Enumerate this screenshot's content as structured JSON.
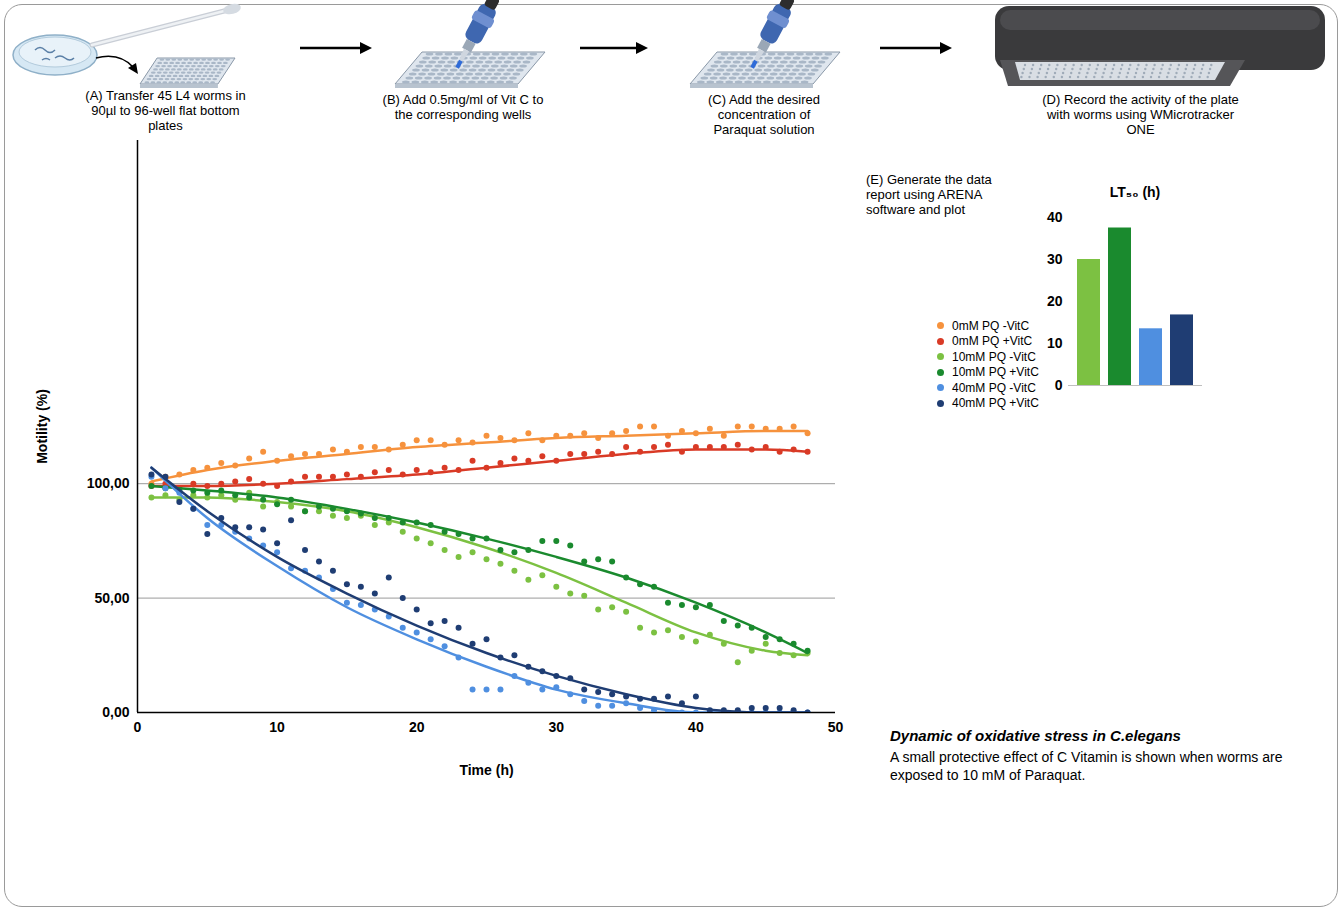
{
  "workflow": {
    "steps": [
      "(A) Transfer 45 L4 worms in 90µl to 96-well flat bottom plates",
      "(B) Add 0.5mg/ml  of Vit C to the corresponding wells",
      "(C) Add the desired concentration of Paraquat solution",
      "(D) Record the activity of the plate with worms using WMicrotracker ONE",
      "(E) Generate the data report using ARENA software and plot"
    ]
  },
  "chart_data": [
    {
      "type": "scatter",
      "marker": "circle",
      "xlabel": "Time (h)",
      "ylabel": "Motility (%)",
      "x": [
        1,
        2,
        3,
        4,
        5,
        6,
        7,
        8,
        9,
        10,
        11,
        12,
        13,
        14,
        15,
        16,
        17,
        18,
        19,
        20,
        21,
        22,
        23,
        24,
        25,
        26,
        27,
        28,
        29,
        30,
        31,
        32,
        33,
        34,
        35,
        36,
        37,
        38,
        39,
        40,
        41,
        42,
        43,
        44,
        45,
        46,
        47,
        48
      ],
      "trend_x": [
        1,
        5,
        10,
        15,
        20,
        25,
        30,
        35,
        40,
        45,
        48
      ],
      "series": [
        {
          "name": "0mM PQ -VitC",
          "color": "#f6923d",
          "values": [
            100,
            103,
            104,
            106,
            107,
            109,
            108,
            111,
            114,
            110,
            112,
            113,
            113,
            115,
            114,
            116,
            116,
            115,
            117,
            119,
            119,
            117,
            119,
            118,
            121,
            120,
            119,
            122,
            119,
            121,
            121,
            122,
            120,
            122,
            123,
            125,
            125,
            121,
            123,
            122,
            124,
            121,
            125,
            125,
            124,
            124,
            125,
            122
          ],
          "trend": [
            101,
            106,
            110,
            113,
            116,
            118,
            120,
            121,
            122,
            123,
            123
          ]
        },
        {
          "name": "0mM PQ +VitC",
          "color": "#d93a26",
          "values": [
            99,
            100,
            98,
            100,
            99,
            100,
            101,
            102,
            100,
            99,
            101,
            103,
            103,
            103,
            104,
            103,
            105,
            106,
            104,
            106,
            105,
            107,
            106,
            110,
            107,
            109,
            111,
            110,
            112,
            110,
            113,
            113,
            114,
            113,
            116,
            114,
            116,
            117,
            114,
            116,
            116,
            116,
            117,
            115,
            116,
            114,
            115,
            114
          ],
          "trend": [
            99,
            99,
            100,
            102,
            104,
            107,
            110,
            113,
            115,
            115,
            114
          ]
        },
        {
          "name": "10mM PQ -VitC",
          "color": "#7cc142",
          "values": [
            94,
            95,
            93,
            95,
            94,
            95,
            93,
            96,
            90,
            92,
            90,
            88,
            88,
            86,
            85,
            86,
            82,
            83,
            79,
            76,
            74,
            71,
            68,
            70,
            67,
            65,
            62,
            58,
            60,
            55,
            52,
            51,
            45,
            46,
            44,
            37,
            35,
            36,
            33,
            31,
            34,
            30,
            22,
            27,
            30,
            26,
            25,
            26
          ],
          "trend": [
            94,
            94,
            92,
            88,
            81,
            72,
            61,
            48,
            35,
            27,
            25
          ]
        },
        {
          "name": "10mM PQ +VitC",
          "color": "#1a8a2e",
          "values": [
            99,
            98,
            97,
            97,
            96,
            97,
            95,
            94,
            93,
            91,
            93,
            88,
            90,
            89,
            88,
            87,
            85,
            85,
            83,
            83,
            82,
            79,
            78,
            76,
            76,
            71,
            70,
            71,
            75,
            75,
            73,
            66,
            67,
            66,
            59,
            56,
            55,
            48,
            47,
            46,
            47,
            40,
            38,
            37,
            33,
            32,
            30,
            27
          ],
          "trend": [
            99,
            97,
            94,
            89,
            83,
            76,
            68,
            59,
            48,
            35,
            26
          ]
        },
        {
          "name": "40mM PQ -VitC",
          "color": "#4f8fe0",
          "values": [
            103,
            98,
            96,
            89,
            82,
            82,
            79,
            76,
            73,
            70,
            63,
            62,
            59,
            54,
            48,
            47,
            45,
            42,
            37,
            35,
            32,
            29,
            24,
            10,
            10,
            10,
            16,
            13,
            10,
            11,
            8,
            5,
            3,
            3,
            4,
            2,
            1,
            0,
            0,
            0,
            0,
            0,
            0,
            0,
            0,
            0,
            0,
            0
          ],
          "trend": [
            107,
            85,
            64,
            46,
            32,
            20,
            10,
            4,
            0,
            0,
            0
          ]
        },
        {
          "name": "40mM PQ +VitC",
          "color": "#1f3d73",
          "values": [
            104,
            103,
            92,
            89,
            78,
            85,
            81,
            81,
            80,
            74,
            84,
            71,
            66,
            62,
            56,
            55,
            52,
            59,
            50,
            45,
            39,
            40,
            37,
            30,
            32,
            24,
            25,
            20,
            18,
            16,
            15,
            10,
            9,
            8,
            7,
            6,
            6,
            7,
            4,
            7,
            1,
            1,
            1,
            2,
            2,
            2,
            1,
            0
          ],
          "trend": [
            107,
            88,
            68,
            52,
            38,
            26,
            16,
            8,
            2,
            0,
            0
          ]
        }
      ],
      "xlim": [
        0,
        50
      ],
      "xticks": [
        0,
        10,
        20,
        30,
        40,
        50
      ],
      "ylim": [
        0,
        250
      ],
      "yticks": [
        {
          "value": 0,
          "label": "0,00"
        },
        {
          "value": 50,
          "label": "50,00"
        },
        {
          "value": 100,
          "label": "100,00"
        }
      ],
      "grid": true,
      "legend": "right"
    },
    {
      "type": "bar",
      "title": "LT₅₀ (h)",
      "categories": [
        null,
        null,
        null,
        null
      ],
      "values": [
        30,
        37.5,
        13.5,
        16.8
      ],
      "colors": [
        "#7cc142",
        "#1a8a2e",
        "#4f8fe0",
        "#1f3d73"
      ],
      "ylim": [
        0,
        40
      ],
      "yticks": [
        0,
        10,
        20,
        30,
        40
      ],
      "grid": false
    }
  ],
  "caption": {
    "title": "Dynamic of oxidative stress in C.elegans",
    "text": "A small protective effect of C Vitamin is shown when worms are exposed to 10 mM of Paraquat."
  }
}
